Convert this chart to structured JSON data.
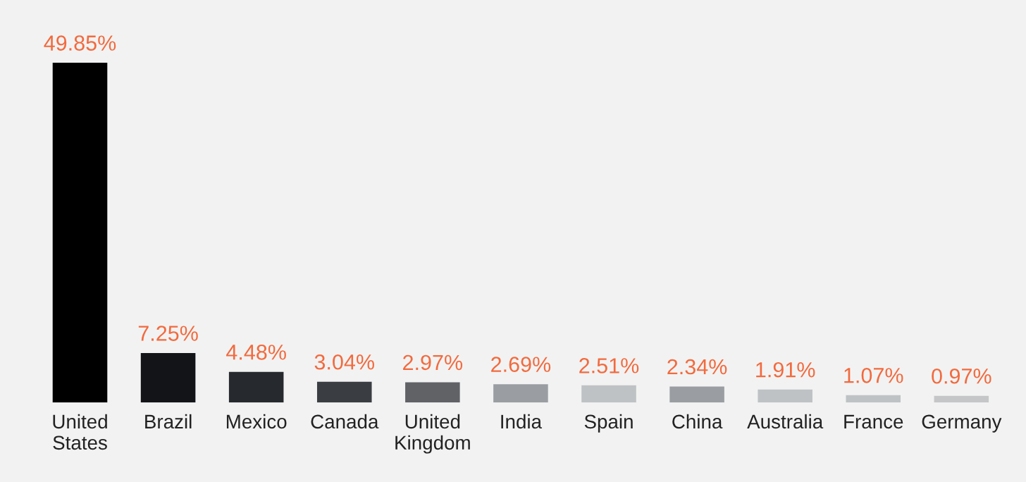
{
  "chart_data": {
    "type": "bar",
    "categories": [
      "United\nStates",
      "Brazil",
      "Mexico",
      "Canada",
      "United\nKingdom",
      "India",
      "Spain",
      "China",
      "Australia",
      "France",
      "Germany"
    ],
    "values": [
      49.85,
      7.25,
      4.48,
      3.04,
      2.97,
      2.69,
      2.51,
      2.34,
      1.91,
      1.07,
      0.97
    ],
    "colors": [
      "#000000",
      "#131417",
      "#26292d",
      "#3a3d41",
      "#606266",
      "#9a9ea3",
      "#bfc2c4",
      "#9a9ea3",
      "#bfc2c4",
      "#bfc2c4",
      "#c4c6c8"
    ],
    "value_labels": [
      "49.85%",
      "7.25%",
      "4.48%",
      "3.04%",
      "2.97%",
      "2.69%",
      "2.51%",
      "2.34%",
      "1.91%",
      "1.07%",
      "0.97%"
    ],
    "grid": false,
    "legend": false,
    "tick_labels": "x"
  }
}
